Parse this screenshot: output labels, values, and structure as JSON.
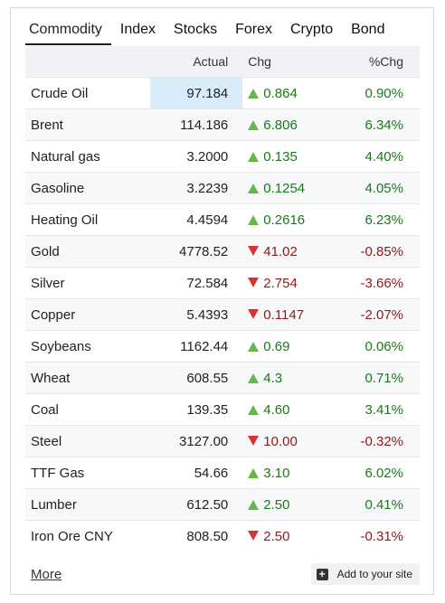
{
  "tabs": [
    {
      "label": "Commodity",
      "active": true
    },
    {
      "label": "Index"
    },
    {
      "label": "Stocks"
    },
    {
      "label": "Forex"
    },
    {
      "label": "Crypto"
    },
    {
      "label": "Bond"
    }
  ],
  "table": {
    "headers": {
      "name": "",
      "actual": "Actual",
      "chg": "Chg",
      "pct": "%Chg"
    },
    "rows": [
      {
        "name": "Crude Oil",
        "actual": "97.184",
        "chg": "0.864",
        "pct": "0.90%",
        "dir": "up",
        "highlight": true
      },
      {
        "name": "Brent",
        "actual": "114.186",
        "chg": "6.806",
        "pct": "6.34%",
        "dir": "up"
      },
      {
        "name": "Natural gas",
        "actual": "3.2000",
        "chg": "0.135",
        "pct": "4.40%",
        "dir": "up"
      },
      {
        "name": "Gasoline",
        "actual": "3.2239",
        "chg": "0.1254",
        "pct": "4.05%",
        "dir": "up"
      },
      {
        "name": "Heating Oil",
        "actual": "4.4594",
        "chg": "0.2616",
        "pct": "6.23%",
        "dir": "up"
      },
      {
        "name": "Gold",
        "actual": "4778.52",
        "chg": "41.02",
        "pct": "-0.85%",
        "dir": "down"
      },
      {
        "name": "Silver",
        "actual": "72.584",
        "chg": "2.754",
        "pct": "-3.66%",
        "dir": "down"
      },
      {
        "name": "Copper",
        "actual": "5.4393",
        "chg": "0.1147",
        "pct": "-2.07%",
        "dir": "down"
      },
      {
        "name": "Soybeans",
        "actual": "1162.44",
        "chg": "0.69",
        "pct": "0.06%",
        "dir": "up"
      },
      {
        "name": "Wheat",
        "actual": "608.55",
        "chg": "4.3",
        "pct": "0.71%",
        "dir": "up"
      },
      {
        "name": "Coal",
        "actual": "139.35",
        "chg": "4.60",
        "pct": "3.41%",
        "dir": "up"
      },
      {
        "name": "Steel",
        "actual": "3127.00",
        "chg": "10.00",
        "pct": "-0.32%",
        "dir": "down"
      },
      {
        "name": "TTF Gas",
        "actual": "54.66",
        "chg": "3.10",
        "pct": "6.02%",
        "dir": "up"
      },
      {
        "name": "Lumber",
        "actual": "612.50",
        "chg": "2.50",
        "pct": "0.41%",
        "dir": "up"
      },
      {
        "name": "Iron Ore CNY",
        "actual": "808.50",
        "chg": "2.50",
        "pct": "-0.31%",
        "dir": "down"
      }
    ]
  },
  "footer": {
    "more_label": "More",
    "add_label": "Add to your site"
  },
  "colors": {
    "up_arrow": "#66b84a",
    "down_arrow": "#d53434",
    "up_text": "#1a7a1a",
    "down_text": "#8b1a1a",
    "highlight": "#d9ecfa"
  }
}
